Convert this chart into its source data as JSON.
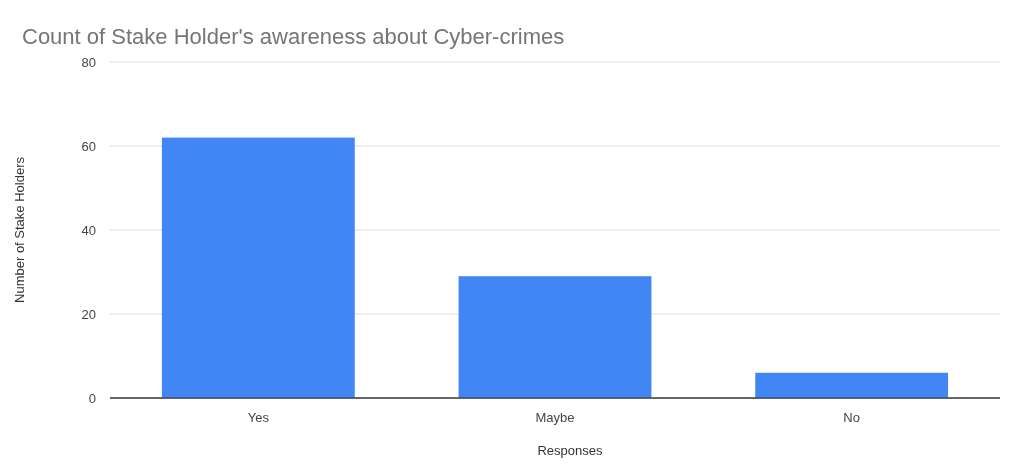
{
  "chart_data": {
    "type": "bar",
    "title": "Count of Stake Holder's awareness about Cyber-crimes",
    "xlabel": "Responses",
    "ylabel": "Number of Stake Holders",
    "categories": [
      "Yes",
      "Maybe",
      "No"
    ],
    "series": [
      {
        "color": "#4285f4",
        "values": [
          62,
          29,
          6
        ]
      }
    ],
    "ylim": [
      0,
      80
    ],
    "yticks": [
      0,
      20,
      40,
      60,
      80
    ],
    "grid": "y"
  }
}
